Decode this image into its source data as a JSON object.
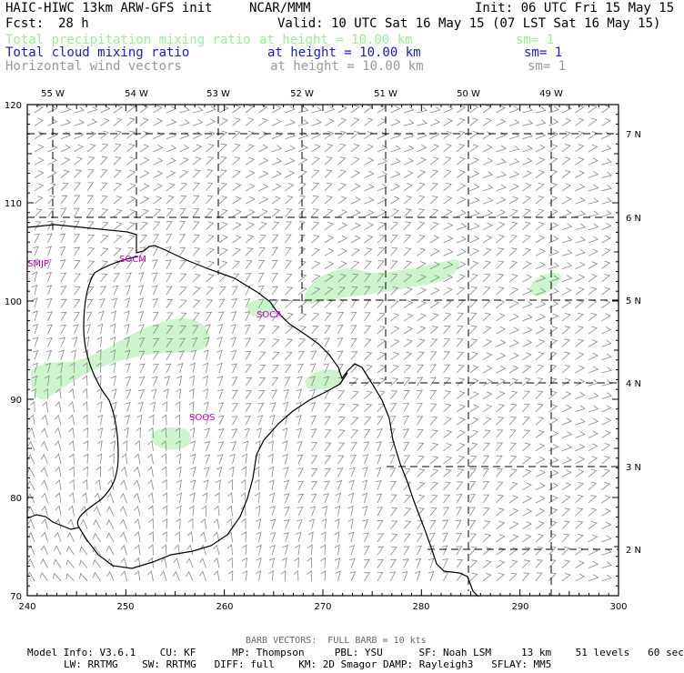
{
  "header": {
    "model": "HAIC-HIWC 13km ARW-GFS init",
    "org": "NCAR/MMM",
    "init": "Init: 06 UTC Fri 15 May 15",
    "fcst_label": "Fcst:",
    "fcst_value": "28 h",
    "valid": "Valid: 10 UTC Sat 16 May 15 (07 LST Sat 16 May 15)",
    "fields": [
      {
        "name": "Total precipitation mixing ratio",
        "level": "at height = 10.00 km",
        "sm": "sm= 1",
        "color": "#99ee99"
      },
      {
        "name": "Total cloud mixing ratio",
        "level": "at height = 10.00 km",
        "sm": "sm= 1",
        "color": "#1a1acc"
      },
      {
        "name": "Horizontal wind vectors",
        "level": "at height = 10.00 km",
        "sm": "sm= 1",
        "color": "#999999"
      }
    ]
  },
  "map": {
    "x_ticks": [
      "240",
      "250",
      "260",
      "270",
      "280",
      "290",
      "300"
    ],
    "y_ticks": [
      "70",
      "80",
      "90",
      "100",
      "110",
      "120"
    ],
    "lon_labels": [
      "55 W",
      "54 W",
      "53 W",
      "52 W",
      "51 W",
      "50 W",
      "49 W"
    ],
    "lat_labels": [
      "7 N",
      "6 N",
      "5 N",
      "4 N",
      "3 N",
      "2 N"
    ],
    "stations": [
      "SMJP",
      "SOCM",
      "SOCA",
      "SOOS"
    ],
    "colors": {
      "coast": "#000000",
      "grid": "#000000",
      "barb": "#888888",
      "precip": "#ccf5cc",
      "station": "#cc00cc"
    }
  },
  "footer": {
    "barb_note": "BARB VECTORS:  FULL BARB = 10 kts",
    "line1": "Model Info: V3.6.1    CU: KF      MP: Thompson     PBL: YSU      SF: Noah LSM     13 km    51 levels   60 sec",
    "line2": "LW: RRTMG    SW: RRTMG   DIFF: full    KM: 2D Smagor DAMP: Rayleigh3   SFLAY: MM5"
  }
}
